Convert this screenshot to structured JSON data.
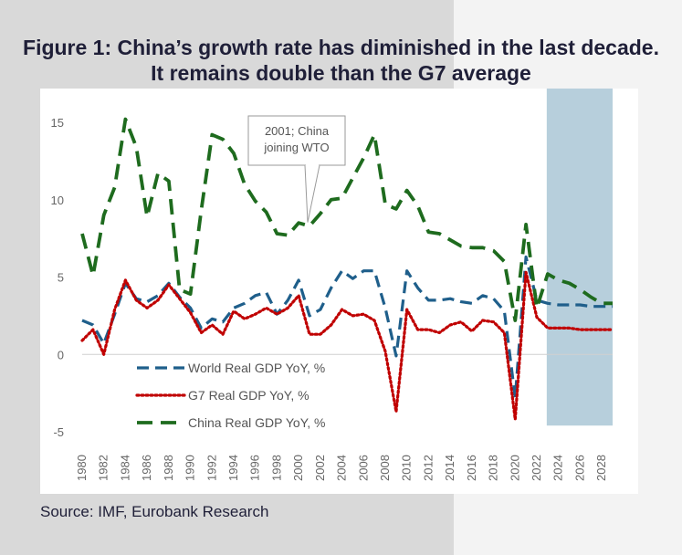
{
  "title": "Figure 1: China’s growth rate has diminished in the last decade. It remains double than the G7 average",
  "source": "Source: IMF, Eurobank Research",
  "colors": {
    "world": "#1f5f8b",
    "g7": "#c00000",
    "china": "#1e6b1e",
    "forecast_band": "#b7cfdc"
  },
  "chart_data": {
    "type": "line",
    "xlim": [
      1980,
      2029
    ],
    "ylim": [
      -5,
      15
    ],
    "yticks": [
      -5,
      0,
      5,
      10,
      15
    ],
    "xticks": [
      1980,
      1982,
      1984,
      1986,
      1988,
      1990,
      1992,
      1994,
      1996,
      1998,
      2000,
      2002,
      2004,
      2006,
      2008,
      2010,
      2012,
      2014,
      2016,
      2018,
      2020,
      2022,
      2024,
      2026,
      2028
    ],
    "forecast_start": 2023,
    "x": [
      1980,
      1981,
      1982,
      1983,
      1984,
      1985,
      1986,
      1987,
      1988,
      1989,
      1990,
      1991,
      1992,
      1993,
      1994,
      1995,
      1996,
      1997,
      1998,
      1999,
      2000,
      2001,
      2002,
      2003,
      2004,
      2005,
      2006,
      2007,
      2008,
      2009,
      2010,
      2011,
      2012,
      2013,
      2014,
      2015,
      2016,
      2017,
      2018,
      2019,
      2020,
      2021,
      2022,
      2023,
      2024,
      2025,
      2026,
      2027,
      2028,
      2029
    ],
    "series": [
      {
        "name": "World Real GDP YoY, %",
        "key": "world",
        "style": "dashed",
        "values": [
          2.2,
          1.9,
          0.7,
          2.6,
          4.6,
          3.6,
          3.4,
          3.8,
          4.6,
          3.7,
          3.0,
          1.7,
          2.3,
          2.1,
          3.0,
          3.3,
          3.8,
          4.0,
          2.6,
          3.5,
          4.8,
          2.5,
          2.9,
          4.3,
          5.4,
          4.9,
          5.4,
          5.4,
          3.0,
          -0.1,
          5.4,
          4.3,
          3.5,
          3.5,
          3.6,
          3.4,
          3.3,
          3.8,
          3.6,
          2.8,
          -2.8,
          6.3,
          3.5,
          3.3,
          3.2,
          3.2,
          3.2,
          3.1,
          3.1,
          3.1
        ]
      },
      {
        "name": "G7 Real GDP YoY, %",
        "key": "g7",
        "style": "dotted",
        "values": [
          0.9,
          1.6,
          0.0,
          2.9,
          4.8,
          3.5,
          3.0,
          3.5,
          4.5,
          3.6,
          2.7,
          1.4,
          1.9,
          1.3,
          2.8,
          2.3,
          2.6,
          3.0,
          2.6,
          3.0,
          3.8,
          1.3,
          1.3,
          1.9,
          2.9,
          2.5,
          2.6,
          2.2,
          0.2,
          -3.7,
          2.9,
          1.6,
          1.6,
          1.4,
          1.9,
          2.1,
          1.5,
          2.2,
          2.1,
          1.4,
          -4.2,
          5.3,
          2.4,
          1.7,
          1.7,
          1.7,
          1.6,
          1.6,
          1.6,
          1.6
        ]
      },
      {
        "name": "China Real GDP YoY, %",
        "key": "china",
        "style": "longdash",
        "values": [
          7.8,
          5.1,
          9.0,
          10.8,
          15.2,
          13.4,
          8.9,
          11.7,
          11.2,
          4.2,
          3.9,
          9.3,
          14.2,
          13.9,
          13.0,
          11.0,
          9.9,
          9.2,
          7.8,
          7.7,
          8.5,
          8.3,
          9.1,
          10.0,
          10.1,
          11.4,
          12.7,
          14.2,
          9.7,
          9.4,
          10.6,
          9.6,
          7.9,
          7.8,
          7.4,
          7.0,
          6.9,
          6.9,
          6.7,
          6.0,
          2.2,
          8.4,
          3.0,
          5.2,
          4.8,
          4.6,
          4.2,
          3.7,
          3.3,
          3.3
        ]
      }
    ],
    "annotation": {
      "lines": [
        "2001; China",
        "joining WTO"
      ],
      "x": 2001,
      "y": 8.3
    }
  }
}
